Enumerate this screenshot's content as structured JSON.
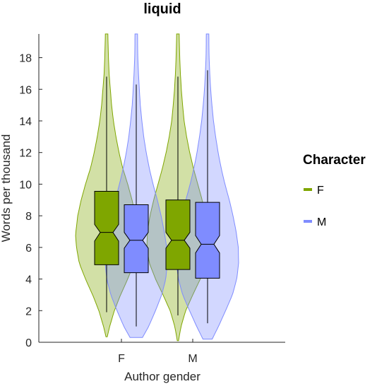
{
  "chart_data": {
    "type": "violin-box",
    "title": "liquid",
    "xlabel": "Author gender",
    "ylabel": "Words per thousand",
    "categories": [
      "F",
      "M"
    ],
    "ylim": [
      0,
      19.5
    ],
    "yticks": [
      0,
      2,
      4,
      6,
      8,
      10,
      12,
      14,
      16,
      18
    ],
    "grid": false,
    "legend": {
      "title": "Character",
      "placement": "right",
      "entries": [
        {
          "label": "F",
          "color": "#7fa600"
        },
        {
          "label": "M",
          "color": "#7f8cff"
        }
      ]
    },
    "series": [
      {
        "name": "F",
        "color": "#7fa600",
        "groups": [
          {
            "category": "F",
            "box": {
              "q1": 4.9,
              "median": 6.95,
              "q3": 9.55,
              "notch_low": 6.4,
              "notch_high": 7.45
            },
            "whisker": {
              "low": 1.9,
              "high": 16.8
            },
            "violin": {
              "min": 0.35,
              "max": 19.5,
              "profile": [
                [
                  0.35,
                  0.02
                ],
                [
                  1,
                  0.1
                ],
                [
                  2,
                  0.25
                ],
                [
                  3,
                  0.45
                ],
                [
                  4,
                  0.68
                ],
                [
                  5,
                  0.88
                ],
                [
                  6,
                  0.97
                ],
                [
                  6.8,
                  1.0
                ],
                [
                  8,
                  0.93
                ],
                [
                  9,
                  0.82
                ],
                [
                  10,
                  0.68
                ],
                [
                  11,
                  0.52
                ],
                [
                  12,
                  0.4
                ],
                [
                  13,
                  0.3
                ],
                [
                  14,
                  0.22
                ],
                [
                  15,
                  0.16
                ],
                [
                  16,
                  0.12
                ],
                [
                  17,
                  0.08
                ],
                [
                  18,
                  0.06
                ],
                [
                  19.5,
                  0.04
                ]
              ]
            }
          },
          {
            "category": "M",
            "box": {
              "q1": 4.6,
              "median": 6.45,
              "q3": 9.0,
              "notch_low": 5.95,
              "notch_high": 6.95
            },
            "whisker": {
              "low": 1.7,
              "high": 16.8
            },
            "violin": {
              "min": 0.1,
              "max": 19.5,
              "profile": [
                [
                  0.1,
                  0.02
                ],
                [
                  1,
                  0.1
                ],
                [
                  2,
                  0.25
                ],
                [
                  3,
                  0.48
                ],
                [
                  4,
                  0.72
                ],
                [
                  5,
                  0.92
                ],
                [
                  6,
                  1.0
                ],
                [
                  7,
                  0.98
                ],
                [
                  8,
                  0.9
                ],
                [
                  9,
                  0.78
                ],
                [
                  10,
                  0.64
                ],
                [
                  11,
                  0.5
                ],
                [
                  12,
                  0.38
                ],
                [
                  13,
                  0.28
                ],
                [
                  14,
                  0.2
                ],
                [
                  15,
                  0.15
                ],
                [
                  16,
                  0.11
                ],
                [
                  17,
                  0.08
                ],
                [
                  18,
                  0.06
                ],
                [
                  19.5,
                  0.04
                ]
              ]
            }
          }
        ]
      },
      {
        "name": "M",
        "color": "#7f8cff",
        "groups": [
          {
            "category": "F",
            "box": {
              "q1": 4.4,
              "median": 6.45,
              "q3": 8.7,
              "notch_low": 5.95,
              "notch_high": 6.95
            },
            "whisker": {
              "low": 1.0,
              "high": 16.3
            },
            "violin": {
              "min": 0.3,
              "max": 19.5,
              "profile": [
                [
                  0.3,
                  0.2
                ],
                [
                  1,
                  0.4
                ],
                [
                  2,
                  0.62
                ],
                [
                  3,
                  0.82
                ],
                [
                  4,
                  0.95
                ],
                [
                  5,
                  1.0
                ],
                [
                  6,
                  0.98
                ],
                [
                  7,
                  0.9
                ],
                [
                  8,
                  0.8
                ],
                [
                  9,
                  0.68
                ],
                [
                  10,
                  0.54
                ],
                [
                  11,
                  0.42
                ],
                [
                  12,
                  0.32
                ],
                [
                  13,
                  0.24
                ],
                [
                  14,
                  0.18
                ],
                [
                  15,
                  0.13
                ],
                [
                  16,
                  0.1
                ],
                [
                  17,
                  0.07
                ],
                [
                  18,
                  0.05
                ],
                [
                  19.5,
                  0.04
                ]
              ]
            }
          },
          {
            "category": "M",
            "box": {
              "q1": 4.05,
              "median": 6.2,
              "q3": 8.85,
              "notch_low": 5.65,
              "notch_high": 6.75
            },
            "whisker": {
              "low": 1.2,
              "high": 17.2
            },
            "violin": {
              "min": 0.2,
              "max": 19.5,
              "profile": [
                [
                  0.2,
                  0.15
                ],
                [
                  1,
                  0.35
                ],
                [
                  2,
                  0.58
                ],
                [
                  3,
                  0.8
                ],
                [
                  4,
                  0.94
                ],
                [
                  5,
                  1.0
                ],
                [
                  6,
                  0.99
                ],
                [
                  7,
                  0.92
                ],
                [
                  8,
                  0.82
                ],
                [
                  9,
                  0.7
                ],
                [
                  10,
                  0.56
                ],
                [
                  11,
                  0.44
                ],
                [
                  12,
                  0.34
                ],
                [
                  13,
                  0.26
                ],
                [
                  14,
                  0.19
                ],
                [
                  15,
                  0.14
                ],
                [
                  16,
                  0.1
                ],
                [
                  17,
                  0.07
                ],
                [
                  18,
                  0.05
                ],
                [
                  19.5,
                  0.04
                ]
              ]
            }
          }
        ]
      }
    ]
  }
}
